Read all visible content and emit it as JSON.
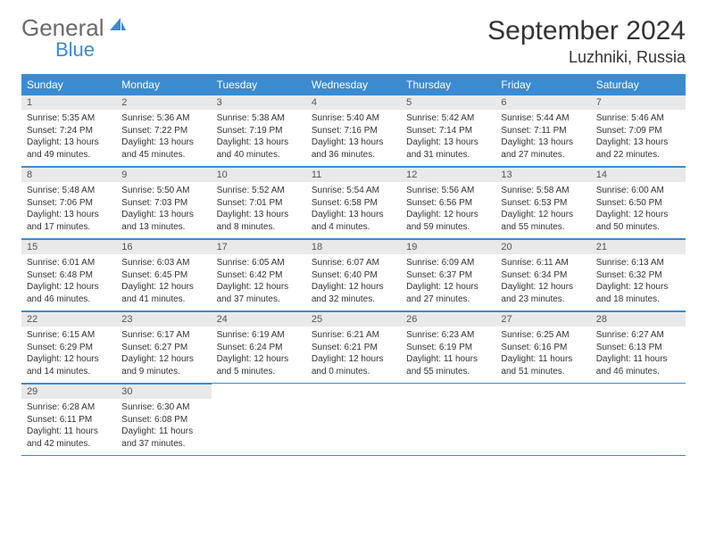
{
  "logo": {
    "line1": "General",
    "line2": "Blue"
  },
  "title": "September 2024",
  "location": "Luzhniki, Russia",
  "colors": {
    "accent": "#3b8bd0",
    "bar": "#e9e9e9",
    "text": "#333333"
  },
  "weekdays": [
    "Sunday",
    "Monday",
    "Tuesday",
    "Wednesday",
    "Thursday",
    "Friday",
    "Saturday"
  ],
  "labels": {
    "sunrise": "Sunrise:",
    "sunset": "Sunset:",
    "daylight": "Daylight:"
  },
  "days": [
    {
      "n": 1,
      "sunrise": "5:35 AM",
      "sunset": "7:24 PM",
      "daylight": "13 hours and 49 minutes."
    },
    {
      "n": 2,
      "sunrise": "5:36 AM",
      "sunset": "7:22 PM",
      "daylight": "13 hours and 45 minutes."
    },
    {
      "n": 3,
      "sunrise": "5:38 AM",
      "sunset": "7:19 PM",
      "daylight": "13 hours and 40 minutes."
    },
    {
      "n": 4,
      "sunrise": "5:40 AM",
      "sunset": "7:16 PM",
      "daylight": "13 hours and 36 minutes."
    },
    {
      "n": 5,
      "sunrise": "5:42 AM",
      "sunset": "7:14 PM",
      "daylight": "13 hours and 31 minutes."
    },
    {
      "n": 6,
      "sunrise": "5:44 AM",
      "sunset": "7:11 PM",
      "daylight": "13 hours and 27 minutes."
    },
    {
      "n": 7,
      "sunrise": "5:46 AM",
      "sunset": "7:09 PM",
      "daylight": "13 hours and 22 minutes."
    },
    {
      "n": 8,
      "sunrise": "5:48 AM",
      "sunset": "7:06 PM",
      "daylight": "13 hours and 17 minutes."
    },
    {
      "n": 9,
      "sunrise": "5:50 AM",
      "sunset": "7:03 PM",
      "daylight": "13 hours and 13 minutes."
    },
    {
      "n": 10,
      "sunrise": "5:52 AM",
      "sunset": "7:01 PM",
      "daylight": "13 hours and 8 minutes."
    },
    {
      "n": 11,
      "sunrise": "5:54 AM",
      "sunset": "6:58 PM",
      "daylight": "13 hours and 4 minutes."
    },
    {
      "n": 12,
      "sunrise": "5:56 AM",
      "sunset": "6:56 PM",
      "daylight": "12 hours and 59 minutes."
    },
    {
      "n": 13,
      "sunrise": "5:58 AM",
      "sunset": "6:53 PM",
      "daylight": "12 hours and 55 minutes."
    },
    {
      "n": 14,
      "sunrise": "6:00 AM",
      "sunset": "6:50 PM",
      "daylight": "12 hours and 50 minutes."
    },
    {
      "n": 15,
      "sunrise": "6:01 AM",
      "sunset": "6:48 PM",
      "daylight": "12 hours and 46 minutes."
    },
    {
      "n": 16,
      "sunrise": "6:03 AM",
      "sunset": "6:45 PM",
      "daylight": "12 hours and 41 minutes."
    },
    {
      "n": 17,
      "sunrise": "6:05 AM",
      "sunset": "6:42 PM",
      "daylight": "12 hours and 37 minutes."
    },
    {
      "n": 18,
      "sunrise": "6:07 AM",
      "sunset": "6:40 PM",
      "daylight": "12 hours and 32 minutes."
    },
    {
      "n": 19,
      "sunrise": "6:09 AM",
      "sunset": "6:37 PM",
      "daylight": "12 hours and 27 minutes."
    },
    {
      "n": 20,
      "sunrise": "6:11 AM",
      "sunset": "6:34 PM",
      "daylight": "12 hours and 23 minutes."
    },
    {
      "n": 21,
      "sunrise": "6:13 AM",
      "sunset": "6:32 PM",
      "daylight": "12 hours and 18 minutes."
    },
    {
      "n": 22,
      "sunrise": "6:15 AM",
      "sunset": "6:29 PM",
      "daylight": "12 hours and 14 minutes."
    },
    {
      "n": 23,
      "sunrise": "6:17 AM",
      "sunset": "6:27 PM",
      "daylight": "12 hours and 9 minutes."
    },
    {
      "n": 24,
      "sunrise": "6:19 AM",
      "sunset": "6:24 PM",
      "daylight": "12 hours and 5 minutes."
    },
    {
      "n": 25,
      "sunrise": "6:21 AM",
      "sunset": "6:21 PM",
      "daylight": "12 hours and 0 minutes."
    },
    {
      "n": 26,
      "sunrise": "6:23 AM",
      "sunset": "6:19 PM",
      "daylight": "11 hours and 55 minutes."
    },
    {
      "n": 27,
      "sunrise": "6:25 AM",
      "sunset": "6:16 PM",
      "daylight": "11 hours and 51 minutes."
    },
    {
      "n": 28,
      "sunrise": "6:27 AM",
      "sunset": "6:13 PM",
      "daylight": "11 hours and 46 minutes."
    },
    {
      "n": 29,
      "sunrise": "6:28 AM",
      "sunset": "6:11 PM",
      "daylight": "11 hours and 42 minutes."
    },
    {
      "n": 30,
      "sunrise": "6:30 AM",
      "sunset": "6:08 PM",
      "daylight": "11 hours and 37 minutes."
    }
  ],
  "first_weekday_index": 0,
  "total_cells": 35
}
